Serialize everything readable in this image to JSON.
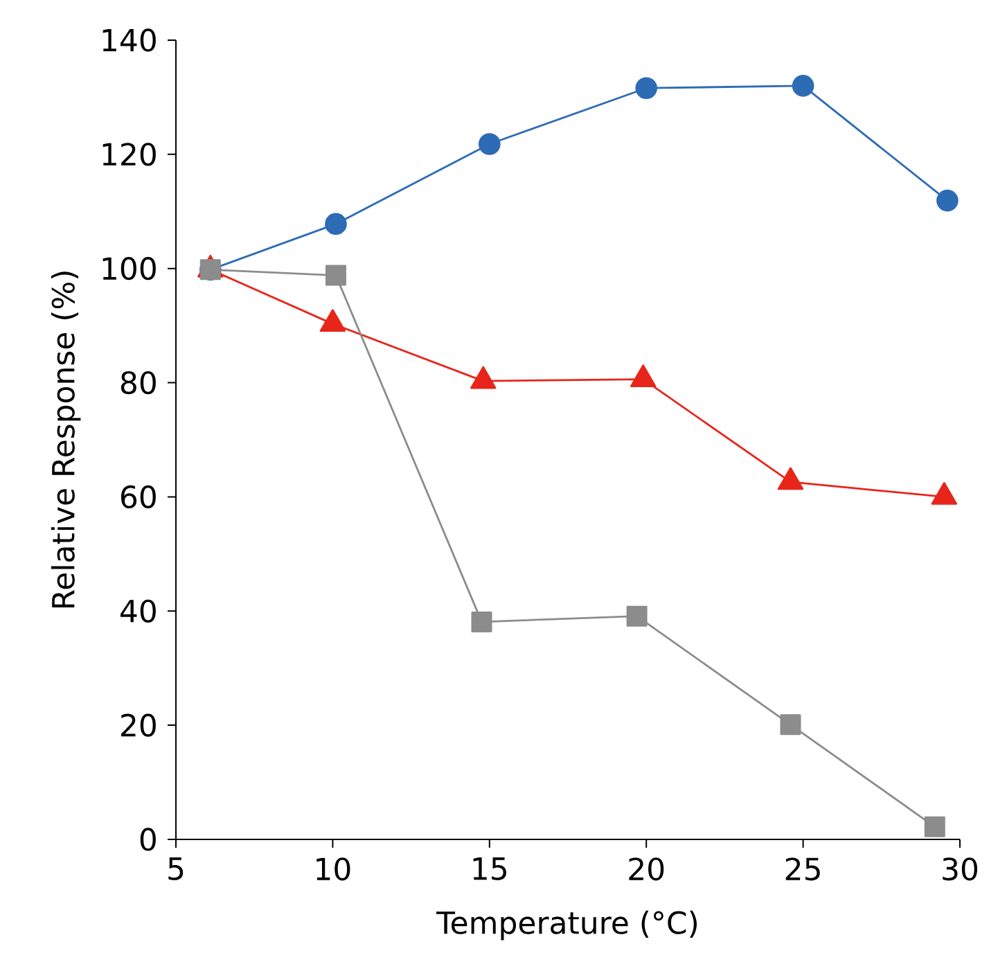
{
  "chart_data": {
    "type": "line",
    "xlabel": "Temperature (°C)",
    "ylabel": "Relative Response (%)",
    "xlim": [
      5,
      30
    ],
    "ylim": [
      0,
      140
    ],
    "xticks": [
      5,
      10,
      15,
      20,
      25,
      30
    ],
    "yticks": [
      0,
      20,
      40,
      60,
      80,
      100,
      120,
      140
    ],
    "grid": false,
    "line_style": "solid",
    "series": [
      {
        "color": "#2e6bb5",
        "marker": "circle",
        "x": [
          6.1,
          10.1,
          15.0,
          20.0,
          25.0,
          29.6
        ],
        "values": [
          99.8,
          107.8,
          121.8,
          131.6,
          132.0,
          111.9
        ]
      },
      {
        "color": "#e8251a",
        "marker": "triangle",
        "x": [
          6.1,
          10.0,
          14.8,
          19.9,
          24.6,
          29.5
        ],
        "values": [
          99.8,
          90.3,
          80.3,
          80.6,
          62.6,
          60.0
        ]
      },
      {
        "color": "#8c8c8c",
        "marker": "square",
        "x": [
          6.1,
          10.1,
          14.75,
          19.7,
          24.6,
          29.2
        ],
        "values": [
          99.8,
          98.8,
          38.1,
          39.1,
          20.1,
          2.2
        ]
      }
    ]
  }
}
